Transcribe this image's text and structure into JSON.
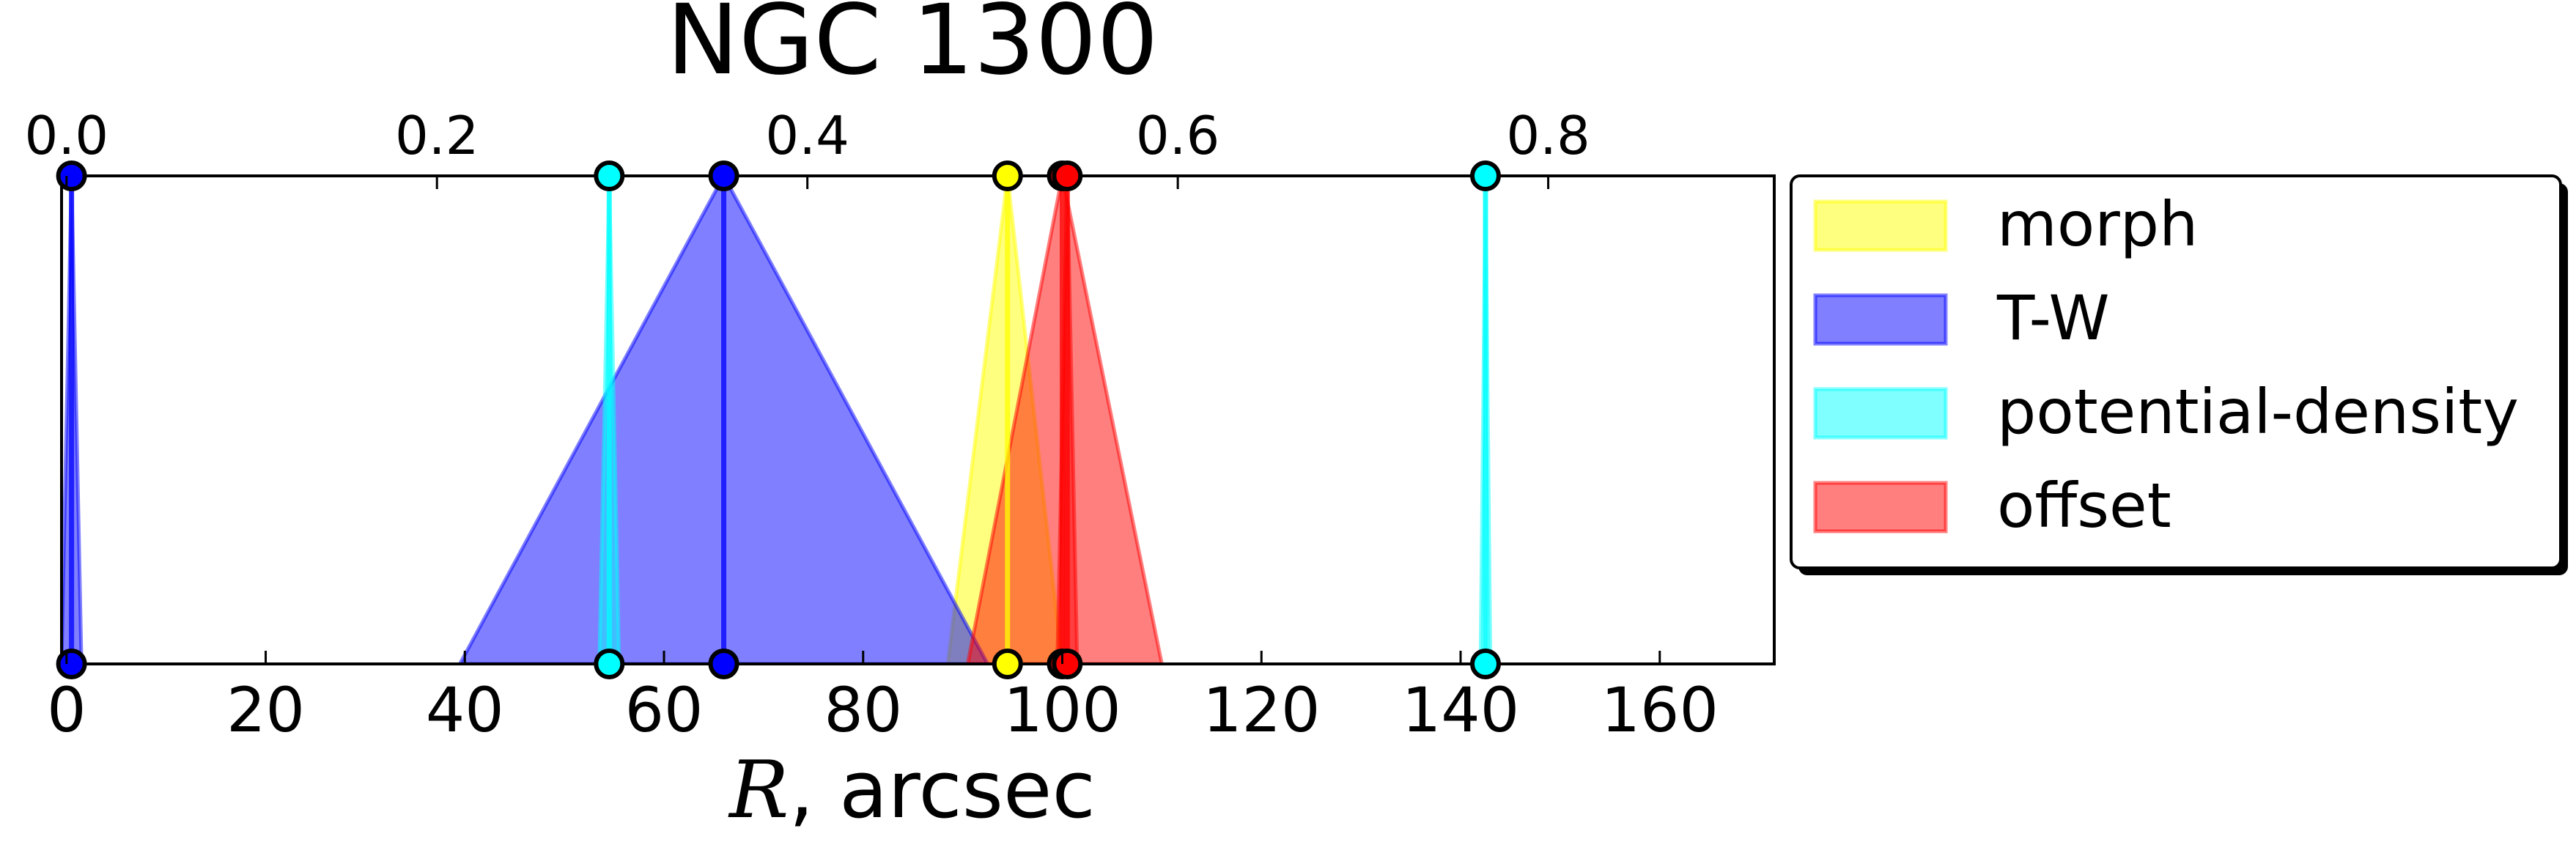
{
  "chart_data": {
    "type": "area",
    "title": "NGC 1300",
    "xlabel_italic": "R",
    "xlabel_rest": ", arcsec",
    "xlim": [
      -0.5,
      171.5
    ],
    "ylim": [
      0,
      1
    ],
    "x_ticks": [
      0,
      20,
      40,
      60,
      80,
      100,
      120,
      140,
      160
    ],
    "top_axis": {
      "ticks": [
        0.0,
        0.2,
        0.4,
        0.6,
        0.8
      ],
      "tick_labels": [
        "0.0",
        "0.2",
        "0.4",
        "0.6",
        "0.8"
      ],
      "arcsec_per_unit": 186.0
    },
    "grid": false,
    "legend_position": "outside-right-top",
    "series": [
      {
        "name": "morph",
        "color": "#ffff00",
        "triangles": [
          {
            "center": 94.5,
            "left": 88.5,
            "right": 100.0
          }
        ]
      },
      {
        "name": "T-W",
        "color": "#0000ff",
        "triangles": [
          {
            "center": 0.5,
            "left": -0.5,
            "right": 1.5
          },
          {
            "center": 66.0,
            "left": 39.5,
            "right": 92.5
          }
        ]
      },
      {
        "name": "potential-density",
        "color": "#00ffff",
        "triangles": [
          {
            "center": 54.5,
            "left": 53.5,
            "right": 55.5
          },
          {
            "center": 142.5,
            "left": 142.0,
            "right": 143.0
          }
        ]
      },
      {
        "name": "offset",
        "color": "#ff0000",
        "triangles": [
          {
            "center": 100.0,
            "left": 90.5,
            "right": 110.0
          },
          {
            "center": 100.5,
            "left": 99.5,
            "right": 101.5
          }
        ]
      }
    ]
  }
}
